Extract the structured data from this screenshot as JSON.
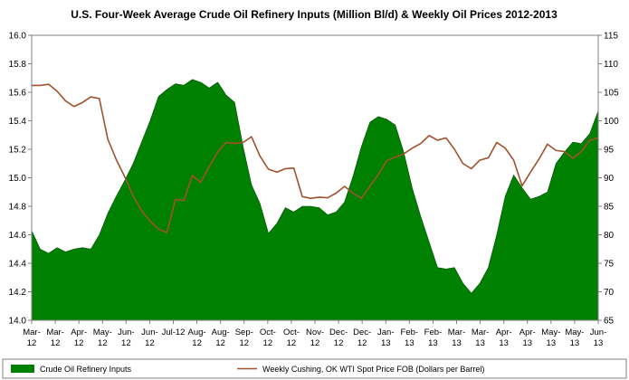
{
  "chart_data": {
    "type": "area+line",
    "title": "U.S. Four-Week Average Crude Oil Refinery Inputs (Million Bl/d) & Weekly Oil Prices 2012-2013",
    "left_axis": {
      "min": 14.0,
      "max": 16.0,
      "ticks": [
        "14.0",
        "14.2",
        "14.4",
        "14.6",
        "14.8",
        "15.0",
        "15.2",
        "15.4",
        "15.6",
        "15.8",
        "16.0"
      ]
    },
    "right_axis": {
      "min": 65,
      "max": 115,
      "ticks": [
        "65",
        "70",
        "75",
        "80",
        "85",
        "90",
        "95",
        "100",
        "105",
        "110",
        "115"
      ]
    },
    "x_labels": [
      [
        "Mar-",
        "12"
      ],
      [
        "Mar-",
        "12"
      ],
      [
        "Apr-",
        "12"
      ],
      [
        "May-",
        "12"
      ],
      [
        "Jun-",
        "12"
      ],
      [
        "Jun-",
        "12"
      ],
      [
        "Jul-12",
        ""
      ],
      [
        "Aug-",
        "12"
      ],
      [
        "Aug-",
        "12"
      ],
      [
        "Sep-",
        "12"
      ],
      [
        "Oct-",
        "12"
      ],
      [
        "Oct-",
        "12"
      ],
      [
        "Nov-",
        "12"
      ],
      [
        "Dec-",
        "12"
      ],
      [
        "Dec-",
        "12"
      ],
      [
        "Jan-",
        "13"
      ],
      [
        "Feb-",
        "13"
      ],
      [
        "Feb-",
        "13"
      ],
      [
        "Mar-",
        "13"
      ],
      [
        "Mar-",
        "13"
      ],
      [
        "Apr-",
        "13"
      ],
      [
        "Apr-",
        "13"
      ],
      [
        "May-",
        "13"
      ],
      [
        "May-",
        "13"
      ],
      [
        "Jun-",
        "13"
      ]
    ],
    "series": [
      {
        "name": "Crude Oil Refinery Inputs",
        "type": "area",
        "axis": "left",
        "color": "#008000",
        "values": [
          14.63,
          14.5,
          14.47,
          14.51,
          14.48,
          14.5,
          14.51,
          14.5,
          14.6,
          14.75,
          14.87,
          14.98,
          15.1,
          15.25,
          15.4,
          15.57,
          15.62,
          15.66,
          15.65,
          15.69,
          15.67,
          15.63,
          15.67,
          15.58,
          15.53,
          15.22,
          14.95,
          14.82,
          14.61,
          14.68,
          14.79,
          14.76,
          14.8,
          14.8,
          14.79,
          14.74,
          14.76,
          14.83,
          15.01,
          15.22,
          15.39,
          15.43,
          15.41,
          15.37,
          15.18,
          14.93,
          14.73,
          14.55,
          14.37,
          14.36,
          14.37,
          14.26,
          14.19,
          14.26,
          14.37,
          14.6,
          14.87,
          15.02,
          14.93,
          14.85,
          14.87,
          14.9,
          15.1,
          15.18,
          15.25,
          15.24,
          15.31,
          15.47
        ]
      },
      {
        "name": "Weekly Cushing, OK WTI Spot Price FOB  (Dollars per Barrel)",
        "type": "line",
        "axis": "right",
        "color": "#a0522d",
        "values": [
          106.2,
          106.2,
          106.4,
          105.2,
          103.5,
          102.5,
          103.2,
          104.2,
          103.9,
          96.8,
          93.2,
          90.2,
          86.8,
          84.2,
          82.4,
          81.0,
          80.4,
          86.2,
          86.0,
          90.4,
          89.2,
          92.0,
          94.5,
          96.2,
          96.0,
          96.2,
          97.2,
          93.8,
          91.5,
          91.0,
          91.6,
          91.7,
          86.7,
          86.4,
          86.6,
          86.5,
          87.3,
          88.5,
          87.3,
          86.4,
          88.5,
          90.6,
          93.0,
          93.6,
          94.2,
          95.2,
          96.0,
          97.4,
          96.6,
          97.0,
          95.0,
          92.5,
          91.6,
          93.1,
          93.5,
          96.2,
          95.2,
          93.1,
          88.6,
          91.0,
          93.3,
          95.9,
          94.8,
          94.6,
          93.4,
          94.6,
          96.6,
          97.0
        ]
      }
    ]
  },
  "legend": {
    "area_label": "Crude Oil Refinery Inputs",
    "line_label": "Weekly Cushing, OK WTI Spot Price FOB  (Dollars per Barrel)"
  },
  "colors": {
    "area": "#008000",
    "line": "#a0522d"
  }
}
